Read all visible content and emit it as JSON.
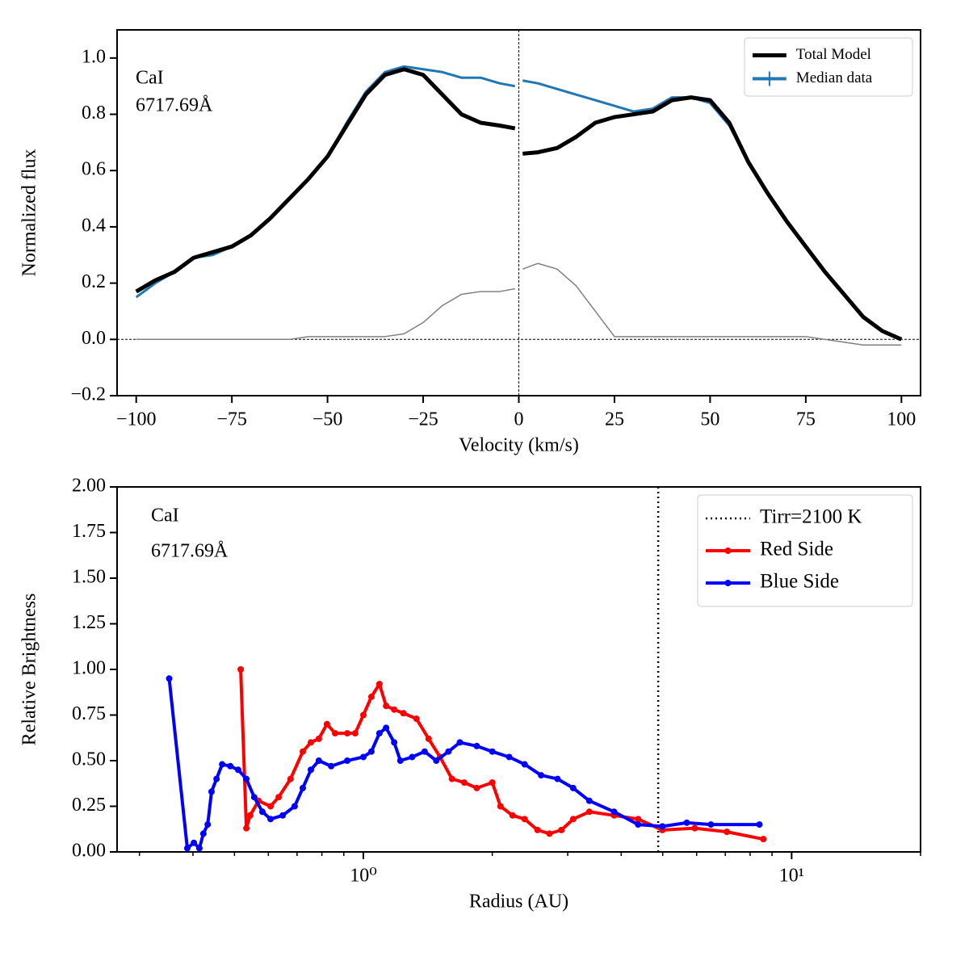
{
  "chart_data": [
    {
      "type": "line",
      "xlabel": "Velocity (km/s)",
      "ylabel": "Normalized flux",
      "annotations": [
        "CaI",
        "6717.69Å"
      ],
      "xlim": [
        -105,
        105
      ],
      "ylim": [
        -0.2,
        1.1
      ],
      "xticks": [
        {
          "value": -100,
          "label": "−100"
        },
        {
          "value": -75,
          "label": "−75"
        },
        {
          "value": -50,
          "label": "−50"
        },
        {
          "value": -25,
          "label": "−25"
        },
        0,
        25,
        50,
        75,
        100
      ],
      "yticks": [
        {
          "value": -0.2,
          "label": "−0.2"
        },
        {
          "value": 0,
          "label": "0.0"
        },
        0.2,
        0.4,
        0.6,
        0.8,
        {
          "value": 1,
          "label": "1.0"
        }
      ],
      "legend": "upper right",
      "x": [
        -100,
        -95,
        -90,
        -85,
        -80,
        -75,
        -70,
        -65,
        -60,
        -55,
        -50,
        -45,
        -40,
        -35,
        -30,
        -25,
        -20,
        -15,
        -10,
        -5,
        -1,
        0,
        1,
        5,
        10,
        15,
        20,
        25,
        30,
        35,
        40,
        45,
        50,
        55,
        60,
        65,
        70,
        75,
        80,
        85,
        90,
        95,
        100
      ],
      "series": [
        {
          "color": "#808080",
          "values": [
            0,
            0,
            0,
            0,
            0,
            0,
            0,
            0,
            0,
            0.01,
            0.01,
            0.01,
            0.01,
            0.01,
            0.02,
            0.06,
            0.12,
            0.16,
            0.17,
            0.17,
            0.18,
            null,
            0.25,
            0.27,
            0.25,
            0.19,
            0.1,
            0.01,
            0.01,
            0.01,
            0.01,
            0.01,
            0.01,
            0.01,
            0.01,
            0.01,
            0.01,
            0.01,
            0,
            -0.01,
            -0.02,
            -0.02,
            -0.02
          ]
        },
        {
          "name": "Median data",
          "color": "#1f77b4",
          "values": [
            0.15,
            0.2,
            0.24,
            0.29,
            0.3,
            0.33,
            0.37,
            0.43,
            0.5,
            0.57,
            0.65,
            0.77,
            0.88,
            0.95,
            0.97,
            0.96,
            0.95,
            0.93,
            0.93,
            0.91,
            0.9,
            null,
            0.92,
            0.91,
            0.89,
            0.87,
            0.85,
            0.83,
            0.81,
            0.82,
            0.86,
            0.86,
            0.84,
            0.76,
            0.63,
            0.52,
            0.42,
            0.33,
            0.24,
            0.16,
            0.08,
            0.03,
            0
          ]
        },
        {
          "name": "Total Model",
          "color": "#000000",
          "values": [
            0.17,
            0.21,
            0.24,
            0.29,
            0.31,
            0.33,
            0.37,
            0.43,
            0.5,
            0.57,
            0.65,
            0.76,
            0.87,
            0.94,
            0.96,
            0.94,
            0.87,
            0.8,
            0.77,
            0.76,
            0.75,
            null,
            0.66,
            0.665,
            0.68,
            0.72,
            0.77,
            0.79,
            0.8,
            0.81,
            0.85,
            0.86,
            0.85,
            0.77,
            0.63,
            0.52,
            0.42,
            0.33,
            0.24,
            0.16,
            0.08,
            0.03,
            0
          ]
        }
      ]
    },
    {
      "type": "line",
      "xlabel": "Radius (AU)",
      "ylabel": "Relative Brightness",
      "annotations": [
        "CaI",
        "6717.69Å"
      ],
      "xscale": "log",
      "xlim": [
        0.266,
        20
      ],
      "ylim": [
        0,
        2
      ],
      "xticks": [
        {
          "value": 1,
          "label": "10⁰"
        },
        {
          "value": 10,
          "label": "10¹"
        }
      ],
      "xminorticks": [
        0.3,
        0.4,
        0.5,
        0.6,
        0.7,
        0.8,
        0.9,
        2,
        3,
        4,
        5,
        6,
        7,
        8,
        9,
        20
      ],
      "yticks": [
        {
          "value": 0,
          "label": "0.00"
        },
        {
          "value": 0.25,
          "label": "0.25"
        },
        {
          "value": 0.5,
          "label": "0.50"
        },
        {
          "value": 0.75,
          "label": "0.75"
        },
        {
          "value": 1,
          "label": "1.00"
        },
        {
          "value": 1.25,
          "label": "1.25"
        },
        {
          "value": 1.5,
          "label": "1.50"
        },
        {
          "value": 1.75,
          "label": "1.75"
        },
        {
          "value": 2,
          "label": "2.00"
        }
      ],
      "legend": "upper right",
      "vlines": [
        {
          "name": "Tirr=2100 K",
          "x": 4.88,
          "color": "#000000"
        }
      ],
      "series": [
        {
          "name": "Red Side",
          "color": "#ff0000",
          "marker": true,
          "x": [
            0.517,
            0.533,
            0.544,
            0.569,
            0.607,
            0.634,
            0.676,
            0.722,
            0.754,
            0.787,
            0.822,
            0.859,
            0.917,
            0.957,
            1.0,
            1.044,
            1.09,
            1.13,
            1.18,
            1.24,
            1.33,
            1.42,
            1.51,
            1.61,
            1.72,
            1.84,
            2.0,
            2.09,
            2.23,
            2.38,
            2.55,
            2.72,
            2.9,
            3.09,
            3.37,
            3.85,
            4.38,
            4.99,
            5.94,
            7.06,
            8.59
          ],
          "values": [
            1.0,
            0.13,
            0.2,
            0.28,
            0.25,
            0.3,
            0.4,
            0.55,
            0.6,
            0.62,
            0.7,
            0.65,
            0.65,
            0.65,
            0.75,
            0.85,
            0.92,
            0.8,
            0.78,
            0.76,
            0.73,
            0.62,
            0.52,
            0.4,
            0.38,
            0.35,
            0.38,
            0.25,
            0.2,
            0.18,
            0.12,
            0.1,
            0.12,
            0.18,
            0.22,
            0.2,
            0.18,
            0.12,
            0.13,
            0.11,
            0.07
          ]
        },
        {
          "name": "Blue Side",
          "color": "#0000ff",
          "marker": true,
          "x": [
            0.352,
            0.388,
            0.402,
            0.414,
            0.423,
            0.433,
            0.442,
            0.454,
            0.468,
            0.489,
            0.51,
            0.533,
            0.556,
            0.581,
            0.607,
            0.648,
            0.691,
            0.722,
            0.754,
            0.787,
            0.841,
            0.917,
            1.0,
            1.044,
            1.09,
            1.13,
            1.18,
            1.22,
            1.3,
            1.39,
            1.48,
            1.58,
            1.68,
            1.84,
            2.0,
            2.19,
            2.38,
            2.6,
            2.84,
            3.09,
            3.37,
            3.85,
            4.38,
            4.99,
            5.69,
            6.48,
            8.41
          ],
          "values": [
            0.95,
            0.02,
            0.05,
            0.02,
            0.1,
            0.15,
            0.33,
            0.4,
            0.48,
            0.47,
            0.45,
            0.4,
            0.3,
            0.22,
            0.18,
            0.2,
            0.25,
            0.35,
            0.45,
            0.5,
            0.47,
            0.5,
            0.52,
            0.55,
            0.65,
            0.68,
            0.6,
            0.5,
            0.52,
            0.55,
            0.5,
            0.55,
            0.6,
            0.58,
            0.55,
            0.52,
            0.48,
            0.42,
            0.4,
            0.35,
            0.28,
            0.22,
            0.15,
            0.14,
            0.16,
            0.15,
            0.15
          ]
        }
      ]
    }
  ]
}
